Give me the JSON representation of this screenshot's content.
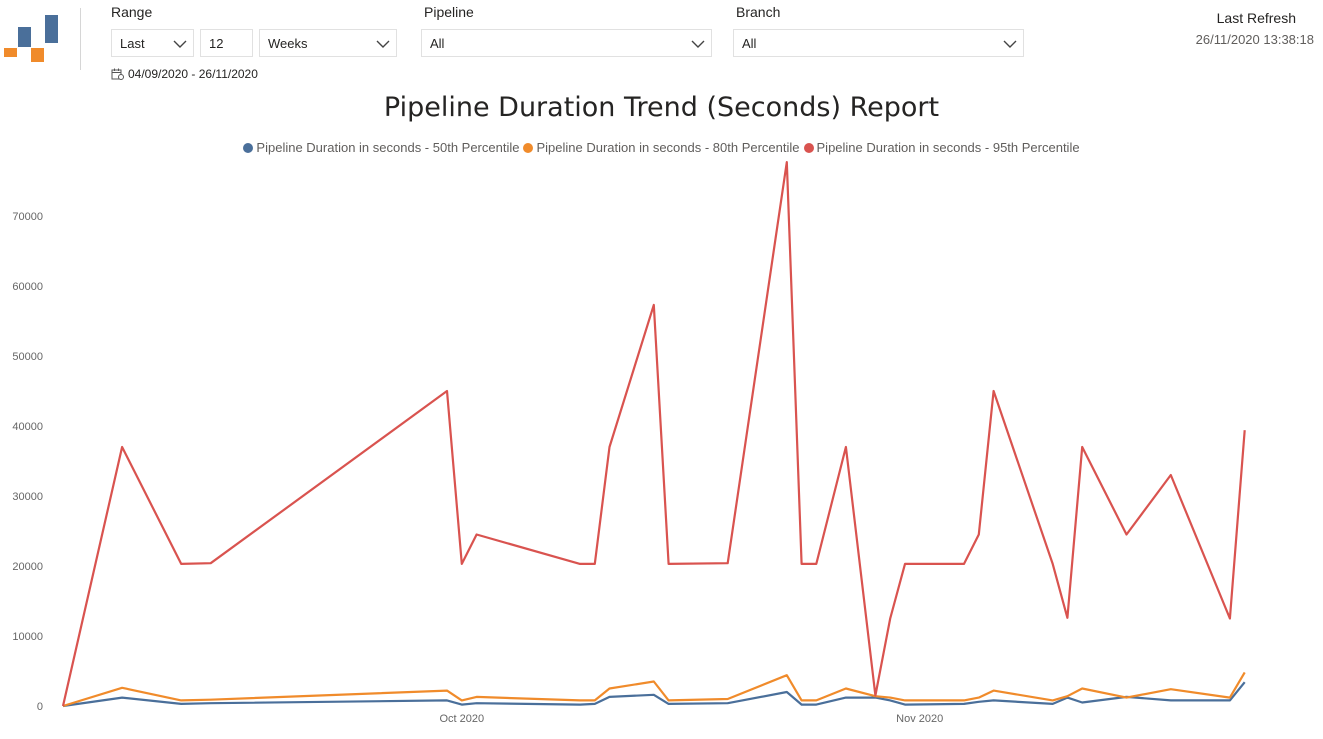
{
  "header": {
    "logo_icon": "app-logo",
    "range": {
      "label": "Range",
      "mode": "Last",
      "count": "12",
      "unit": "Weeks",
      "date_range": "04/09/2020 - 26/11/2020",
      "calendar_icon": "calendar-icon"
    },
    "pipeline": {
      "label": "Pipeline",
      "value": "All"
    },
    "branch": {
      "label": "Branch",
      "value": "All"
    },
    "refresh": {
      "label": "Last Refresh",
      "value": "26/11/2020 13:38:18"
    }
  },
  "chart_data": {
    "type": "line",
    "title": "Pipeline Duration Trend (Seconds) Report",
    "xlabel": "",
    "ylabel": "",
    "ylim": [
      0,
      78000
    ],
    "yticks": [
      0,
      10000,
      20000,
      30000,
      40000,
      50000,
      60000,
      70000
    ],
    "xlim": [
      "2020-09-04",
      "2020-11-26"
    ],
    "xticks": [
      {
        "label": "Oct 2020",
        "date": "2020-10-01"
      },
      {
        "label": "Nov 2020",
        "date": "2020-11-01"
      }
    ],
    "legend_position": "top-center",
    "grid": false,
    "x": [
      "2020-09-04",
      "2020-09-08",
      "2020-09-12",
      "2020-09-14",
      "2020-09-30",
      "2020-10-01",
      "2020-10-02",
      "2020-10-09",
      "2020-10-10",
      "2020-10-11",
      "2020-10-14",
      "2020-10-15",
      "2020-10-19",
      "2020-10-23",
      "2020-10-24",
      "2020-10-25",
      "2020-10-27",
      "2020-10-29",
      "2020-10-30",
      "2020-10-31",
      "2020-11-04",
      "2020-11-05",
      "2020-11-06",
      "2020-11-10",
      "2020-11-11",
      "2020-11-12",
      "2020-11-15",
      "2020-11-18",
      "2020-11-22",
      "2020-11-23"
    ],
    "series": [
      {
        "name": "Pipeline Duration in seconds - 50th Percentile",
        "color": "#4a6f9a",
        "values": [
          0,
          1200,
          300,
          400,
          800,
          200,
          400,
          200,
          300,
          1300,
          1600,
          300,
          400,
          2000,
          200,
          200,
          1200,
          1200,
          800,
          200,
          300,
          600,
          800,
          300,
          1200,
          500,
          1300,
          800,
          800,
          3400
        ]
      },
      {
        "name": "Pipeline Duration in seconds - 80th Percentile",
        "color": "#f08b2b",
        "values": [
          0,
          2600,
          800,
          900,
          2200,
          800,
          1300,
          800,
          800,
          2500,
          3500,
          800,
          1000,
          4400,
          800,
          800,
          2500,
          1400,
          1200,
          800,
          800,
          1200,
          2200,
          800,
          1400,
          2500,
          1200,
          2400,
          1200,
          4800
        ]
      },
      {
        "name": "Pipeline Duration in seconds - 95th Percentile",
        "color": "#d9534f",
        "values": [
          0,
          37000,
          20300,
          20400,
          45000,
          20300,
          24500,
          20300,
          20300,
          37000,
          57300,
          20300,
          20400,
          77700,
          20300,
          20300,
          37000,
          1500,
          12500,
          20300,
          20300,
          24500,
          45000,
          20300,
          12600,
          37000,
          24500,
          33000,
          12500,
          39400
        ]
      }
    ]
  }
}
